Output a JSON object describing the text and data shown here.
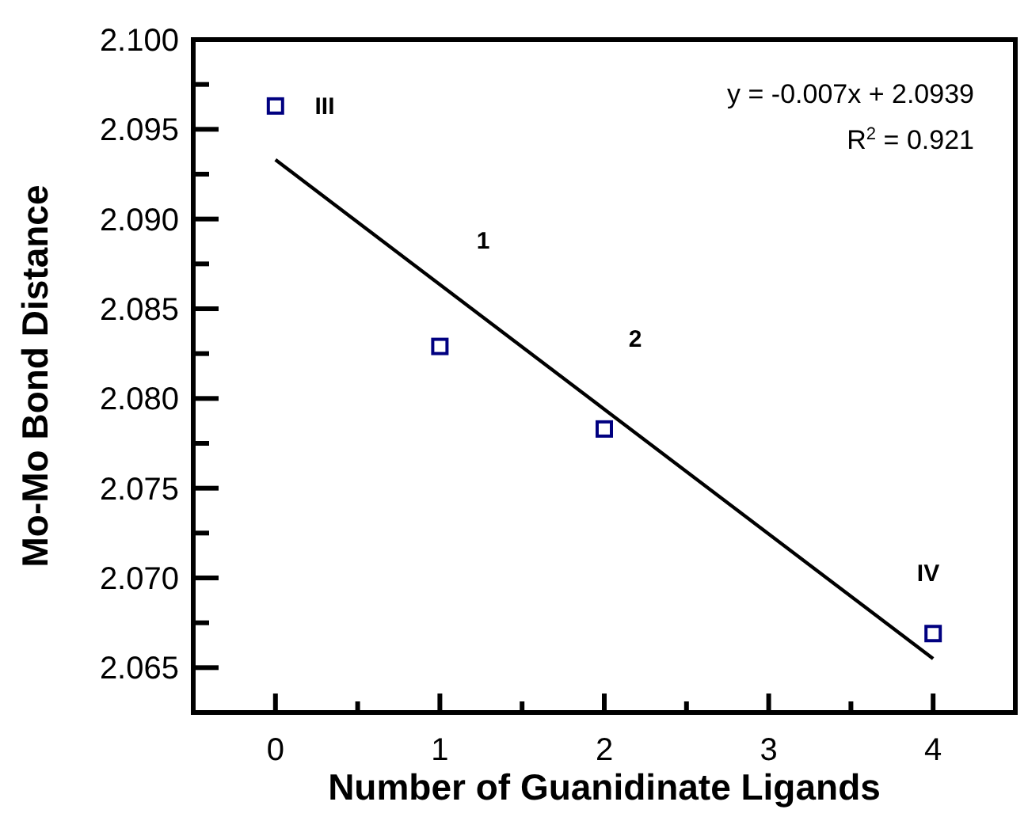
{
  "chart_data": {
    "type": "scatter",
    "xlabel": "Number of Guanidinate Ligands",
    "ylabel": "Mo-Mo Bond Distance",
    "xlim": [
      -0.5,
      4.5
    ],
    "ylim": [
      2.0625,
      2.1
    ],
    "xticks": [
      {
        "value": -0.5,
        "label": null
      },
      0,
      {
        "value": 0.5,
        "label": null
      },
      1,
      {
        "value": 1.5,
        "label": null
      },
      2,
      {
        "value": 2.5,
        "label": null
      },
      3,
      {
        "value": 3.5,
        "label": null
      },
      4,
      {
        "value": 4.5,
        "label": null
      }
    ],
    "yticks": [
      {
        "value": 2.065,
        "label": "2.065"
      },
      {
        "value": 2.0675,
        "label": null
      },
      {
        "value": 2.07,
        "label": "2.070"
      },
      {
        "value": 2.0725,
        "label": null
      },
      {
        "value": 2.075,
        "label": "2.075"
      },
      {
        "value": 2.0775,
        "label": null
      },
      {
        "value": 2.08,
        "label": "2.080"
      },
      {
        "value": 2.0825,
        "label": null
      },
      {
        "value": 2.085,
        "label": "2.085"
      },
      {
        "value": 2.0875,
        "label": null
      },
      {
        "value": 2.09,
        "label": "2.090"
      },
      {
        "value": 2.0925,
        "label": null
      },
      {
        "value": 2.095,
        "label": "2.095"
      },
      {
        "value": 2.0975,
        "label": null
      },
      {
        "value": 2.1,
        "label": "2.100"
      }
    ],
    "grid": false,
    "series": [
      {
        "type": "scatter",
        "marker": "square",
        "color": "#000080",
        "x": [
          0,
          1,
          2,
          4
        ],
        "values": [
          2.0963,
          2.0829,
          2.0783,
          2.0669
        ]
      },
      {
        "type": "line",
        "color": "#000000",
        "x": [
          0,
          4
        ],
        "values": [
          2.0933,
          2.0655
        ],
        "marker": "none",
        "line_style": "solid"
      }
    ],
    "annotations": [
      "y = -0.007x + 2.0939",
      "R$^{2}$ = 0.921",
      "III",
      "1",
      "2",
      "IV"
    ]
  }
}
